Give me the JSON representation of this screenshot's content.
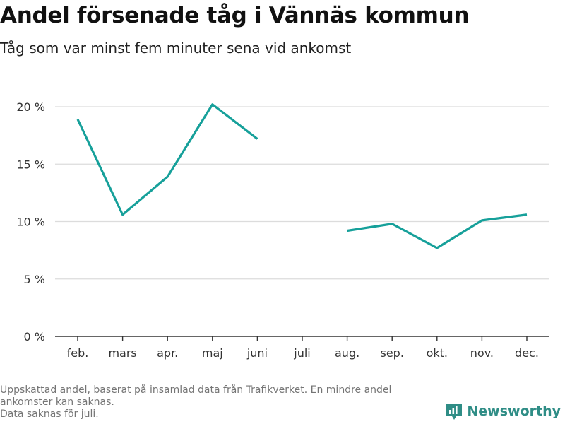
{
  "header": {
    "title": "Andel försenade tåg i Vännäs kommun",
    "subtitle": "Tåg som var minst fem minuter sena vid ankomst"
  },
  "colors": {
    "line": "#16a09a",
    "grid": "#dcdcdc",
    "axis": "#333333",
    "brand": "#2f8d86"
  },
  "chart_data": {
    "type": "line",
    "categories": [
      "feb.",
      "mars",
      "apr.",
      "maj",
      "juni",
      "juli",
      "aug.",
      "sep.",
      "okt.",
      "nov.",
      "dec."
    ],
    "series": [
      {
        "values": [
          18.9,
          10.6,
          13.9,
          20.2,
          17.2,
          null,
          9.2,
          9.8,
          7.7,
          10.1,
          10.6
        ]
      }
    ],
    "yticks": [
      "0 %",
      "5 %",
      "10 %",
      "15 %",
      "20 %"
    ],
    "ytick_values": [
      0,
      5,
      10,
      15,
      20
    ],
    "ylim": [
      0,
      20
    ],
    "grid": true,
    "legend": "none"
  },
  "footnote": {
    "line1": "Uppskattad andel, baserat på insamlad data från Trafikverket. En mindre andel",
    "line2": "ankomster kan saknas.",
    "line3": "Data saknas för juli."
  },
  "brand": {
    "name": "Newsworthy",
    "icon": "newsworthy-logo-icon"
  }
}
